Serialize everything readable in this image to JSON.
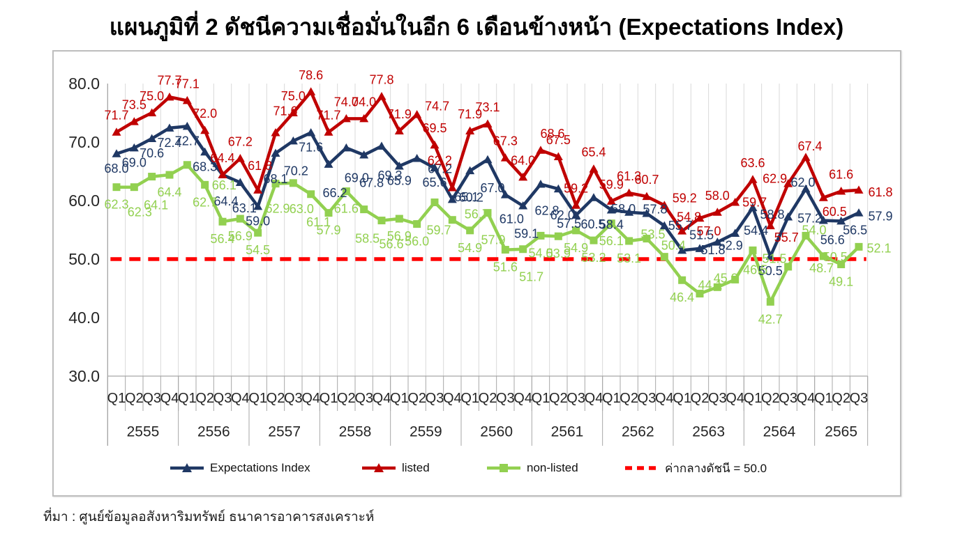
{
  "title": "แผนภูมิที่ 2 ดัชนีความเชื่อมั่นในอีก 6 เดือนข้างหน้า (Expectations Index)",
  "source": "ที่มา : ศูนย์ข้อมูลอสังหาริมทรัพย์ ธนาคารอาคารสงเคราะห์",
  "colors": {
    "expectations": "#1F3864",
    "listed": "#C00000",
    "non_listed": "#92D050",
    "reference": "#FF0000",
    "gridline": "#D9D9D9",
    "axis": "#A6A6A6",
    "axis_text": "#262626"
  },
  "legend": [
    {
      "label": "Expectations Index",
      "color": "#1F3864",
      "marker": "triangle",
      "style": "solid"
    },
    {
      "label": "listed",
      "color": "#C00000",
      "marker": "triangle",
      "style": "solid"
    },
    {
      "label": "non-listed",
      "color": "#92D050",
      "marker": "square",
      "style": "solid"
    },
    {
      "label": "ค่ากลางดัชนี = 50.0",
      "color": "#FF0000",
      "marker": "none",
      "style": "dashed"
    }
  ],
  "y_axis": {
    "ticks": [
      "80.0",
      "70.0",
      "60.0",
      "50.0",
      "40.0",
      "30.0"
    ],
    "min": 30,
    "max": 80
  },
  "chart_data": {
    "type": "line",
    "grid": "vertical-only",
    "legend_position": "bottom",
    "ylim": [
      30,
      80
    ],
    "years": [
      {
        "label": "2555",
        "quarters": [
          "Q1",
          "Q2",
          "Q3",
          "Q4"
        ]
      },
      {
        "label": "2556",
        "quarters": [
          "Q1",
          "Q2",
          "Q3",
          "Q4"
        ]
      },
      {
        "label": "2557",
        "quarters": [
          "Q1",
          "Q2",
          "Q3",
          "Q4"
        ]
      },
      {
        "label": "2558",
        "quarters": [
          "Q1",
          "Q2",
          "Q3",
          "Q4"
        ]
      },
      {
        "label": "2559",
        "quarters": [
          "Q1",
          "Q2",
          "Q3",
          "Q4"
        ]
      },
      {
        "label": "2560",
        "quarters": [
          "Q1",
          "Q2",
          "Q3",
          "Q4"
        ]
      },
      {
        "label": "2561",
        "quarters": [
          "Q1",
          "Q2",
          "Q3",
          "Q4"
        ]
      },
      {
        "label": "2562",
        "quarters": [
          "Q1",
          "Q2",
          "Q3",
          "Q4"
        ]
      },
      {
        "label": "2563",
        "quarters": [
          "Q1",
          "Q2",
          "Q3",
          "Q4"
        ]
      },
      {
        "label": "2564",
        "quarters": [
          "Q1",
          "Q2",
          "Q3",
          "Q4"
        ]
      },
      {
        "label": "2565",
        "quarters": [
          "Q1",
          "Q2",
          "Q3"
        ]
      }
    ],
    "series": [
      {
        "name": "Expectations Index",
        "color": "#1F3864",
        "marker": "triangle",
        "values": [
          68.0,
          69.0,
          70.6,
          72.4,
          72.7,
          68.3,
          64.4,
          63.1,
          59.0,
          68.1,
          70.2,
          71.6,
          66.2,
          69.0,
          67.8,
          69.3,
          65.9,
          67.2,
          65.6,
          60.2,
          65.1,
          67.0,
          61.0,
          59.1,
          62.8,
          62.0,
          57.5,
          60.5,
          58.4,
          58.0,
          57.8,
          55.7,
          51.5,
          51.8,
          52.9,
          54.4,
          58.8,
          50.5,
          57.2,
          62.0,
          56.6,
          56.5,
          57.9
        ]
      },
      {
        "name": "listed",
        "color": "#C00000",
        "marker": "triangle",
        "values": [
          71.7,
          73.5,
          75.0,
          77.7,
          77.1,
          72.0,
          64.4,
          67.2,
          61.8,
          71.6,
          75.0,
          78.6,
          71.7,
          74.0,
          74.0,
          77.8,
          71.9,
          74.7,
          69.5,
          62.2,
          71.9,
          73.1,
          67.3,
          64.0,
          68.6,
          67.5,
          59.2,
          65.4,
          59.9,
          61.3,
          60.7,
          59.2,
          54.8,
          57.0,
          58.0,
          59.7,
          63.6,
          55.7,
          62.9,
          67.4,
          60.5,
          61.6,
          61.8
        ]
      },
      {
        "name": "non-listed",
        "color": "#92D050",
        "marker": "square",
        "values": [
          62.3,
          62.3,
          64.1,
          64.4,
          66.1,
          62.7,
          56.4,
          56.9,
          54.5,
          62.9,
          63.0,
          61.1,
          57.9,
          61.6,
          58.5,
          56.6,
          56.9,
          56.0,
          59.7,
          56.7,
          54.9,
          57.9,
          51.6,
          51.7,
          54.0,
          53.9,
          54.9,
          53.2,
          56.1,
          53.1,
          53.5,
          50.4,
          46.4,
          44.1,
          45.2,
          46.5,
          51.5,
          42.7,
          48.7,
          54.0,
          50.5,
          49.1,
          52.1
        ]
      }
    ],
    "reference_line": {
      "label": "ค่ากลางดัชนี = 50.0",
      "value": 50.0,
      "color": "#FF0000",
      "style": "dashed"
    }
  }
}
